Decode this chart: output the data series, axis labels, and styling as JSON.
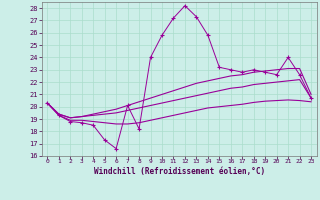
{
  "xlabel": "Windchill (Refroidissement éolien,°C)",
  "bg_color": "#cceee8",
  "grid_color": "#aaddcc",
  "line_color": "#990099",
  "xlim": [
    -0.5,
    23.5
  ],
  "ylim": [
    16,
    28.5
  ],
  "xticks": [
    0,
    1,
    2,
    3,
    4,
    5,
    6,
    7,
    8,
    9,
    10,
    11,
    12,
    13,
    14,
    15,
    16,
    17,
    18,
    19,
    20,
    21,
    22,
    23
  ],
  "yticks": [
    16,
    17,
    18,
    19,
    20,
    21,
    22,
    23,
    24,
    25,
    26,
    27,
    28
  ],
  "line1_x": [
    0,
    1,
    2,
    3,
    4,
    5,
    6,
    7,
    8,
    9,
    10,
    11,
    12,
    13,
    14,
    15,
    16,
    17,
    18,
    19,
    20,
    21,
    22,
    23
  ],
  "line1_y": [
    20.3,
    19.3,
    18.8,
    18.7,
    18.5,
    17.3,
    16.6,
    20.1,
    18.2,
    24.0,
    25.8,
    27.2,
    28.2,
    27.3,
    25.8,
    23.2,
    23.0,
    22.8,
    23.0,
    22.8,
    22.6,
    24.0,
    22.6,
    20.7
  ],
  "line2_x": [
    0,
    1,
    2,
    3,
    4,
    5,
    6,
    7,
    8,
    9,
    10,
    11,
    12,
    13,
    14,
    15,
    16,
    17,
    18,
    19,
    20,
    21,
    22,
    23
  ],
  "line2_y": [
    20.3,
    19.4,
    19.1,
    19.2,
    19.4,
    19.6,
    19.8,
    20.1,
    20.4,
    20.7,
    21.0,
    21.3,
    21.6,
    21.9,
    22.1,
    22.3,
    22.5,
    22.6,
    22.8,
    22.9,
    23.0,
    23.1,
    23.1,
    21.0
  ],
  "line3_x": [
    0,
    1,
    2,
    3,
    4,
    5,
    6,
    7,
    8,
    9,
    10,
    11,
    12,
    13,
    14,
    15,
    16,
    17,
    18,
    19,
    20,
    21,
    22,
    23
  ],
  "line3_y": [
    20.3,
    19.4,
    19.1,
    19.2,
    19.3,
    19.4,
    19.5,
    19.7,
    19.9,
    20.1,
    20.3,
    20.5,
    20.7,
    20.9,
    21.1,
    21.3,
    21.5,
    21.6,
    21.8,
    21.9,
    22.0,
    22.1,
    22.2,
    20.7
  ],
  "line4_x": [
    0,
    1,
    2,
    3,
    4,
    5,
    6,
    7,
    8,
    9,
    10,
    11,
    12,
    13,
    14,
    15,
    16,
    17,
    18,
    19,
    20,
    21,
    22,
    23
  ],
  "line4_y": [
    20.3,
    19.3,
    18.9,
    18.9,
    18.8,
    18.7,
    18.6,
    18.6,
    18.7,
    18.9,
    19.1,
    19.3,
    19.5,
    19.7,
    19.9,
    20.0,
    20.1,
    20.2,
    20.35,
    20.45,
    20.5,
    20.55,
    20.5,
    20.4
  ]
}
